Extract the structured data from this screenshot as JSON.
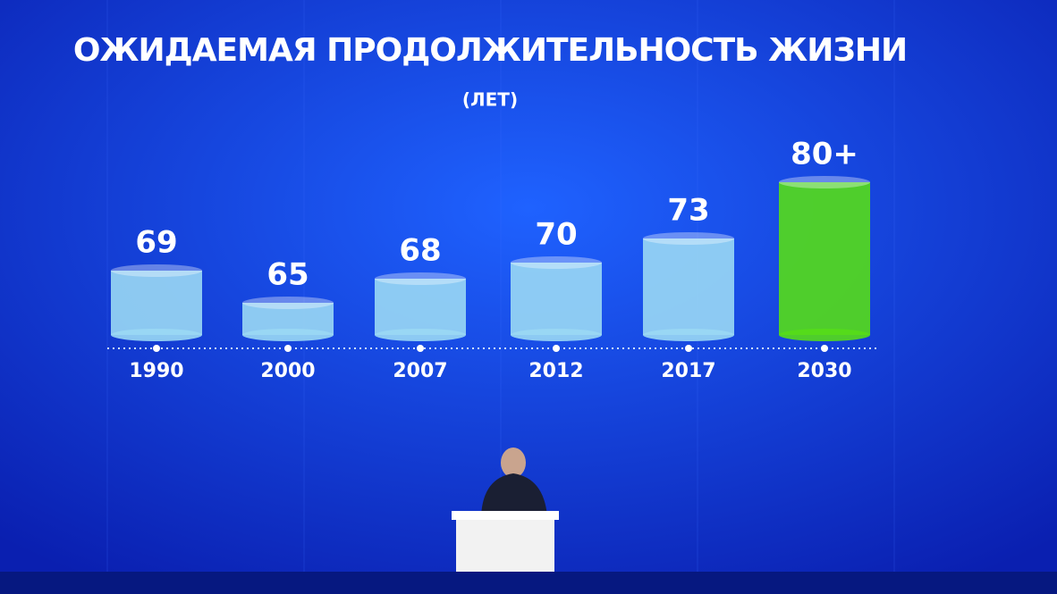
{
  "chart_data": {
    "type": "bar",
    "title": "ОЖИДАЕМАЯ ПРОДОЛЖИТЕЛЬНОСТЬ ЖИЗНИ",
    "subtitle": "(ЛЕТ)",
    "categories": [
      "1990",
      "2000",
      "2007",
      "2012",
      "2017",
      "2030"
    ],
    "values": [
      69,
      65,
      68,
      70,
      73,
      80
    ],
    "value_labels": [
      "69",
      "65",
      "68",
      "70",
      "73",
      "80+"
    ],
    "colors": [
      "#9ad8f4",
      "#9ad8f4",
      "#9ad8f4",
      "#9ad8f4",
      "#9ad8f4",
      "#55dd18"
    ],
    "ylim": [
      61,
      80
    ]
  }
}
